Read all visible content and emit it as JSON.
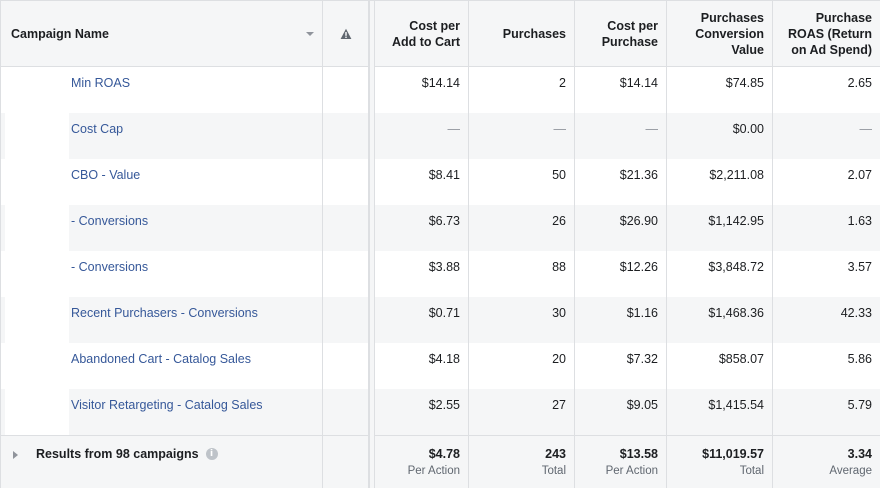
{
  "header": {
    "campaign_name": "Campaign Name",
    "cost_per_add_to_cart": [
      "Cost per",
      "Add to Cart"
    ],
    "purchases": "Purchases",
    "cost_per_purchase": [
      "Cost per",
      "Purchase"
    ],
    "purchases_conversion_value": [
      "Purchases",
      "Conversion",
      "Value"
    ],
    "purchase_roas": [
      "Purchase",
      "ROAS (Return",
      "on Ad Spend)"
    ]
  },
  "rows": [
    {
      "name": "Min ROAS",
      "cpatc": "$14.14",
      "purchases": "2",
      "cpp": "$14.14",
      "value": "$74.85",
      "roas": "2.65"
    },
    {
      "name": "Cost Cap",
      "cpatc": "—",
      "purchases": "—",
      "cpp": "—",
      "value": "$0.00",
      "roas": "—"
    },
    {
      "name": "CBO - Value",
      "cpatc": "$8.41",
      "purchases": "50",
      "cpp": "$21.36",
      "value": "$2,211.08",
      "roas": "2.07"
    },
    {
      "name": "- Conversions",
      "cpatc": "$6.73",
      "purchases": "26",
      "cpp": "$26.90",
      "value": "$1,142.95",
      "roas": "1.63"
    },
    {
      "name": "- Conversions",
      "cpatc": "$3.88",
      "purchases": "88",
      "cpp": "$12.26",
      "value": "$3,848.72",
      "roas": "3.57"
    },
    {
      "name": "Recent Purchasers - Conversions",
      "cpatc": "$0.71",
      "purchases": "30",
      "cpp": "$1.16",
      "value": "$1,468.36",
      "roas": "42.33"
    },
    {
      "name": "Abandoned Cart - Catalog Sales",
      "cpatc": "$4.18",
      "purchases": "20",
      "cpp": "$7.32",
      "value": "$858.07",
      "roas": "5.86"
    },
    {
      "name": "Visitor Retargeting - Catalog Sales",
      "cpatc": "$2.55",
      "purchases": "27",
      "cpp": "$9.05",
      "value": "$1,415.54",
      "roas": "5.79"
    }
  ],
  "totals": {
    "label": "Results from 98 campaigns",
    "info_icon_glyph": "i",
    "cpatc": {
      "value": "$4.78",
      "sub": "Per Action"
    },
    "purchases": {
      "value": "243",
      "sub": "Total"
    },
    "cpp": {
      "value": "$13.58",
      "sub": "Per Action"
    },
    "value": {
      "value": "$11,019.57",
      "sub": "Total"
    },
    "roas": {
      "value": "3.34",
      "sub": "Average"
    }
  },
  "colors": {
    "link": "#365899",
    "header_bg": "#f5f6f7",
    "border": "#dddfe2",
    "muted": "#606770"
  }
}
